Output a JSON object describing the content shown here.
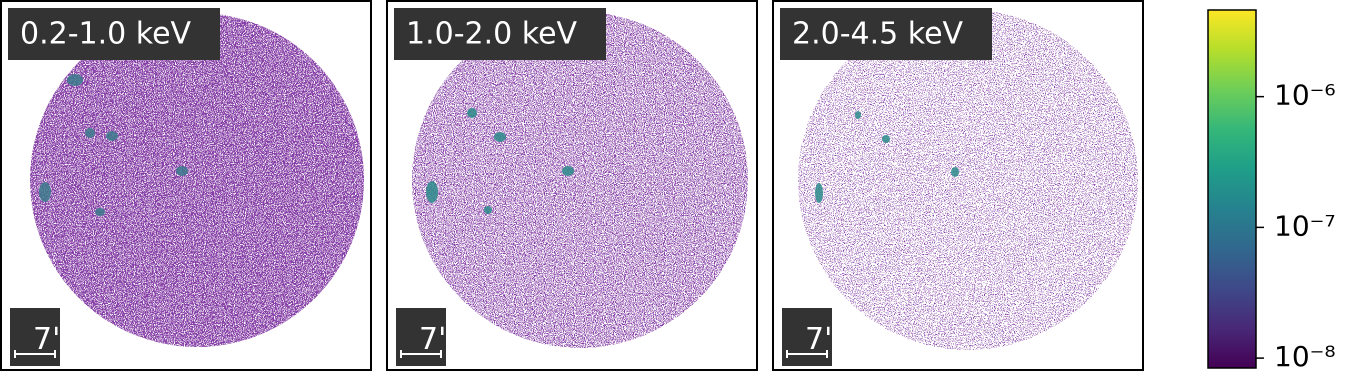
{
  "chart_data": {
    "type": "image",
    "panels": [
      {
        "label": "0.2-1.0 keV",
        "scale_bar": "7'"
      },
      {
        "label": "1.0-2.0 keV",
        "scale_bar": "7'"
      },
      {
        "label": "2.0-4.5 keV",
        "scale_bar": "7'"
      }
    ],
    "colorbar": {
      "colormap": "viridis",
      "log_scale": true,
      "ylim": [
        8.4e-09,
        4.6e-06
      ],
      "yticks": [
        {
          "value": 1e-08,
          "label": "10⁻⁸"
        },
        {
          "value": 1e-07,
          "label": "10⁻⁷"
        },
        {
          "value": 1e-06,
          "label": "10⁻⁶"
        }
      ]
    }
  }
}
